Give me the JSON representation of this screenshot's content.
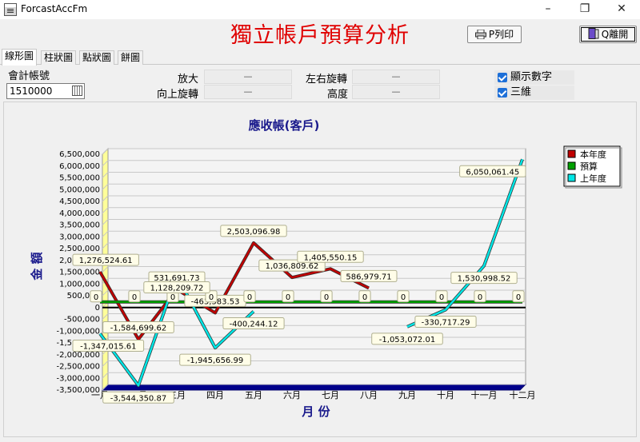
{
  "window": {
    "title": "ForcastAccFm",
    "minimize": "–",
    "maximize": "❐",
    "close": "✕"
  },
  "report_title": "獨立帳戶預算分析",
  "buttons": {
    "print": "P列印",
    "close": "Q離開"
  },
  "tabs": [
    {
      "label": "線形圖",
      "active": true
    },
    {
      "label": "柱狀圖",
      "active": false
    },
    {
      "label": "點狀圖",
      "active": false
    },
    {
      "label": "餅圖",
      "active": false
    }
  ],
  "account": {
    "label": "會計帳號",
    "value": "1510000"
  },
  "settings": {
    "zoom": {
      "label": "放大",
      "value": "—"
    },
    "rotate_up": {
      "label": "向上旋轉",
      "value": "—"
    },
    "rotate_lr": {
      "label": "左右旋轉",
      "value": "—"
    },
    "height": {
      "label": "高度",
      "value": "—"
    }
  },
  "checkboxes": [
    {
      "label": "顯示數字",
      "checked": true
    },
    {
      "label": "三維",
      "checked": true
    }
  ],
  "colors": {
    "current": "#c00000",
    "budget": "#00a000",
    "last": "#00e6e6",
    "title_red": "#e00000",
    "navy": "#1a1a8c",
    "wall": "#ffff99"
  },
  "chart_data": {
    "type": "line",
    "title": "應收帳(客戶)",
    "xlabel": "月 份",
    "ylabel": "金 額",
    "ylim": [
      -3500000,
      6500000
    ],
    "ytick_step": 500000,
    "yticks": [
      "6,500,000",
      "6,000,000",
      "5,500,000",
      "5,000,000",
      "4,500,000",
      "4,000,000",
      "3,500,000",
      "3,000,000",
      "2,500,000",
      "2,000,000",
      "1,500,000",
      "1,000,000",
      "500,000",
      "0",
      "-500,000",
      "-1,000,000",
      "-1,500,000",
      "-2,000,000",
      "-2,500,000",
      "-3,000,000",
      "-3,500,000"
    ],
    "categories": [
      "一月",
      "二月",
      "三月",
      "四月",
      "五月",
      "六月",
      "七月",
      "八月",
      "九月",
      "十月",
      "十一月",
      "十二月"
    ],
    "series": [
      {
        "name": "本年度",
        "color": "#c00000",
        "values": [
          1276524.61,
          -1584699.62,
          531691.73,
          -463383.53,
          2503096.98,
          1036809.62,
          1405550.15,
          586979.71,
          null,
          null,
          null,
          null
        ],
        "labels": [
          "1,276,524.61",
          "-1,584,699.62",
          "531,691.73",
          "-463,383.53",
          "2,503,096.98",
          "1,036,809.62",
          "1,405,550.15",
          "586,979.71",
          "",
          "",
          "",
          ""
        ]
      },
      {
        "name": "預算",
        "color": "#00a000",
        "values": [
          0,
          0,
          0,
          0,
          0,
          0,
          0,
          0,
          0,
          0,
          0,
          0
        ],
        "labels": [
          "0",
          "0",
          "0",
          "0",
          "0",
          "0",
          "0",
          "0",
          "0",
          "0",
          "0",
          "0"
        ]
      },
      {
        "name": "上年度",
        "color": "#00e6e6",
        "values": [
          -1347015.61,
          -3544350.87,
          1128209.72,
          -1945656.99,
          -400244.12,
          null,
          null,
          null,
          -1053072.01,
          -330717.29,
          1530998.52,
          6050061.45
        ],
        "labels": [
          "-1,347,015.61",
          "-3,544,350.87",
          "1,128,209.72",
          "-1,945,656.99",
          "-400,244.12",
          "",
          "",
          "",
          "-1,053,072.01",
          "-330,717.29",
          "1,530,998.52",
          "6,050,061.45"
        ]
      }
    ],
    "legend": "top-right",
    "grid": true
  }
}
